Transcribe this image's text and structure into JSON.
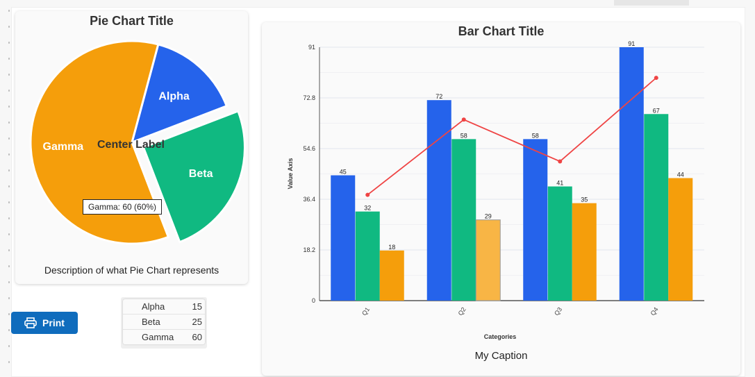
{
  "pie": {
    "title": "Pie Chart Title",
    "center_label": "Center Label",
    "description": "Description of what Pie Chart represents",
    "tooltip": "Gamma: 60 (60%)",
    "exploded": "Beta"
  },
  "print_button": {
    "label": "Print",
    "icon": "printer-icon"
  },
  "legend_table": [
    {
      "label": "Alpha",
      "value": "15"
    },
    {
      "label": "Beta",
      "value": "25"
    },
    {
      "label": "Gamma",
      "value": "60"
    }
  ],
  "bar": {
    "caption": "My Caption"
  },
  "chart_data": [
    {
      "type": "pie",
      "title": "Pie Chart Title",
      "categories": [
        "Alpha",
        "Beta",
        "Gamma"
      ],
      "values": [
        15,
        25,
        60
      ],
      "colors": [
        "#2563eb",
        "#10b981",
        "#f59e0b"
      ]
    },
    {
      "type": "bar",
      "title": "Bar Chart Title",
      "xlabel": "Categories",
      "ylabel": "Value Axis",
      "categories": [
        "Q1",
        "Q2",
        "Q3",
        "Q4"
      ],
      "ylim": [
        0,
        91
      ],
      "yticks": [
        "0",
        "18.2",
        "36.4",
        "54.6",
        "72.8",
        "91"
      ],
      "grid": true,
      "series": [
        {
          "type": "bar",
          "values": [
            45,
            72,
            58,
            91
          ],
          "color": "#2563eb"
        },
        {
          "type": "bar",
          "values": [
            32,
            58,
            41,
            67
          ],
          "color": "#10b981"
        },
        {
          "type": "bar",
          "values": [
            18,
            29,
            35,
            44
          ],
          "color": "#f59e0b"
        },
        {
          "type": "line",
          "values": [
            38,
            65,
            50,
            80
          ],
          "color": "#ef4444"
        }
      ],
      "highlighted": {
        "series": 2,
        "category": "Q2",
        "color": "#f8b545"
      }
    }
  ]
}
